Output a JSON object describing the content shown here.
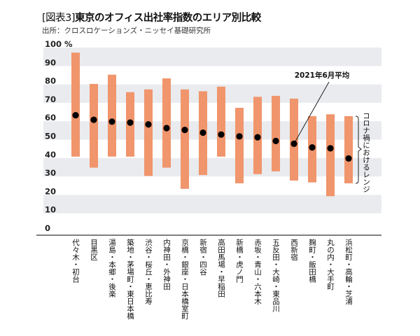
{
  "title_prefix": "[図表3]",
  "title": "東京のオフィス出社率指数のエリア別比較",
  "source": "出所：クロスロケーションズ・ニッセイ基礎研究所",
  "chart_data": {
    "type": "range-bar-with-points",
    "title": "[図表3] 東京のオフィス出社率指数のエリア別比較",
    "ylabel": "%",
    "ylim": [
      0,
      100
    ],
    "yticks": [
      0,
      10,
      20,
      30,
      40,
      50,
      60,
      70,
      80,
      90,
      100
    ],
    "ytick_labels": [
      "0",
      "10",
      "20",
      "30",
      "40",
      "50",
      "60",
      "70",
      "80",
      "90",
      "100 %"
    ],
    "grid": "alternating horizontal bands",
    "categories": [
      "代々木・初台",
      "目黒区",
      "湯島・本郷・後楽",
      "築地・茅場町・東日本橋",
      "渋谷・桜丘・恵比寿",
      "内神田・外神田",
      "京橋・銀座・日本橋室町",
      "新宿・四谷",
      "高田馬場・早稲田",
      "新橋・虎ノ門",
      "赤坂・青山・六本木",
      "五反田・大崎・東品川",
      "西新宿",
      "麹町・飯田橋",
      "丸の内・大手町",
      "浜松町・高輪・芝浦"
    ],
    "range_high": [
      95,
      78,
      83,
      73.5,
      75,
      81,
      75,
      74,
      76.5,
      65,
      71,
      71.5,
      70,
      60.5,
      61.5,
      60.5
    ],
    "range_low": [
      38.5,
      32.5,
      38.5,
      38.5,
      28,
      32.5,
      21,
      28.5,
      38.5,
      24,
      29,
      30.5,
      25.5,
      24.5,
      17,
      24
    ],
    "june_2021_avg": [
      61,
      58.5,
      57.5,
      57,
      56,
      54,
      53,
      51.5,
      50.5,
      49.5,
      49,
      47,
      45.5,
      43.5,
      43,
      37.5
    ],
    "annotation": "2021年6月平均",
    "range_label": "コロナ禍におけるレンジ",
    "colors": {
      "range_bar": "#f0956c",
      "point": "#000000",
      "band": "#e9ebee",
      "axis": "#555555"
    }
  }
}
